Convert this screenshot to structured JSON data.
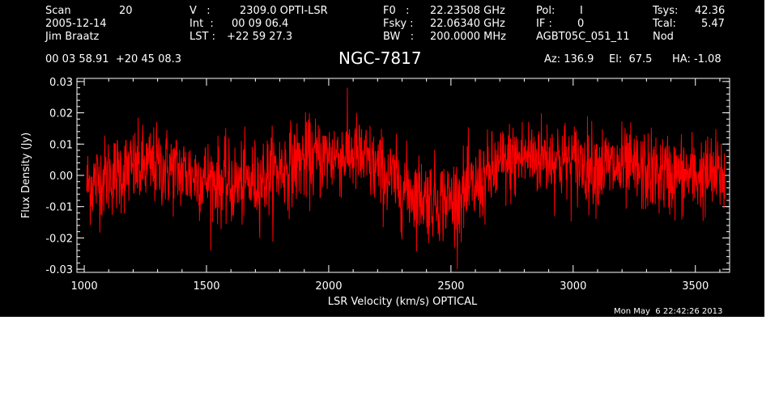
{
  "header": {
    "scan_label": "Scan",
    "scan_value": "20",
    "date": "2005-12-14",
    "observer": "Jim Braatz",
    "v_label": "V   :",
    "v_value": "2309.0 OPTI-LSR",
    "int_label": "Int  :",
    "int_value": "00 09 06.4",
    "lst_label": "LST :",
    "lst_value": "+22 59 27.3",
    "f0_label": "F0   :",
    "f0_value": "22.23508 GHz",
    "fsky_label": "Fsky :",
    "fsky_value": "22.06340 GHz",
    "bw_label": "BW   :",
    "bw_value": "200.0000 MHz",
    "pol_label": "Pol:",
    "pol_value": "I",
    "if_label": "IF :",
    "if_value": "0",
    "project": "AGBT05C_051_11",
    "tsys_label": "Tsys:",
    "tsys_value": "42.36",
    "tcal_label": "Tcal:",
    "tcal_value": "5.47",
    "mode": "Nod",
    "coords": "00 03 58.91  +20 45 08.3",
    "source": "NGC-7817",
    "az": "Az: 136.9",
    "el": "El:  67.5",
    "ha": "HA: -1.08"
  },
  "timestamp": "Mon May  6 22:42:26 2013",
  "colors": {
    "background": "#000000",
    "spectrum": "#ff0000",
    "axes": "#ffffff"
  },
  "chart_data": {
    "type": "line",
    "title": "NGC-7817",
    "xlabel": "LSR Velocity (km/s) OPTICAL",
    "ylabel": "Flux Density (Jy)",
    "xlim": [
      970,
      3640
    ],
    "ylim": [
      -0.031,
      0.031
    ],
    "xticks": [
      1000,
      1500,
      2000,
      2500,
      3000,
      3500
    ],
    "xtick_labels": [
      "1000",
      "1500",
      "2000",
      "2500",
      "3000",
      "3500"
    ],
    "yticks": [
      -0.03,
      -0.02,
      -0.01,
      0.0,
      0.01,
      0.02,
      0.03
    ],
    "ytick_labels": [
      "-0.03",
      "-0.02",
      "-0.01",
      "0.00",
      "0.01",
      "0.02",
      "0.03"
    ],
    "grid": false,
    "series": [
      {
        "x_start": 1010,
        "x_end": 3620,
        "baseline_x": [
          1010,
          1100,
          1200,
          1300,
          1400,
          1500,
          1600,
          1700,
          1800,
          1900,
          2000,
          2100,
          2200,
          2300,
          2400,
          2500,
          2600,
          2700,
          2800,
          2900,
          3000,
          3100,
          3200,
          3300,
          3400,
          3500,
          3620
        ],
        "baseline_y": [
          -0.003,
          0.0,
          0.002,
          0.003,
          0.001,
          -0.001,
          -0.003,
          -0.002,
          0.002,
          0.005,
          0.006,
          0.007,
          0.002,
          -0.004,
          -0.007,
          -0.008,
          -0.004,
          0.003,
          0.006,
          0.006,
          0.004,
          0.003,
          0.002,
          0.001,
          0.0,
          0.0,
          0.0
        ],
        "noise_rms": 0.0065
      }
    ]
  }
}
